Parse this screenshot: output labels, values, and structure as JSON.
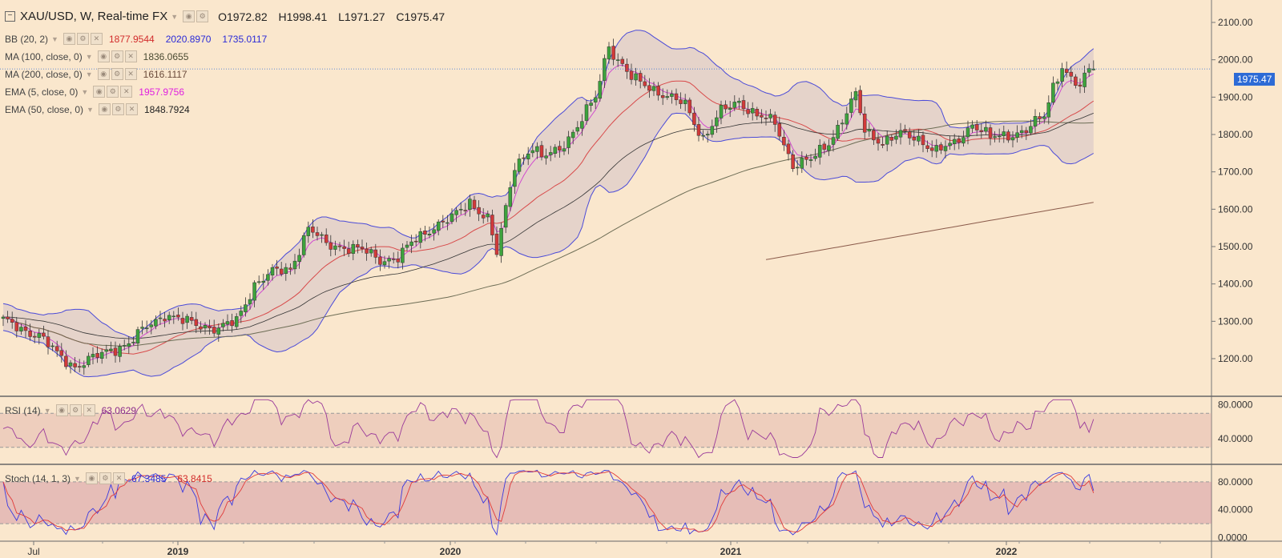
{
  "header": {
    "symbol": "XAU/USD, W, Real-time FX",
    "open": "O1972.82",
    "high": "H1998.41",
    "low": "L1971.27",
    "close": "C1975.47"
  },
  "indicators": [
    {
      "id": "bb",
      "name": "BB (20, 2)",
      "values": [
        {
          "text": "1877.9544",
          "color": "#d22b2b"
        },
        {
          "text": "2020.8970",
          "color": "#2a2ad8"
        },
        {
          "text": "1735.0117",
          "color": "#2a2ad8"
        }
      ]
    },
    {
      "id": "ma100",
      "name": "MA (100, close, 0)",
      "values": [
        {
          "text": "1836.0655",
          "color": "#4a4a32"
        }
      ]
    },
    {
      "id": "ma200",
      "name": "MA (200, close, 0)",
      "values": [
        {
          "text": "1616.1117",
          "color": "#6a4a3a"
        }
      ]
    },
    {
      "id": "ema5",
      "name": "EMA (5, close, 0)",
      "values": [
        {
          "text": "1957.9756",
          "color": "#e020e0"
        }
      ]
    },
    {
      "id": "ema50",
      "name": "EMA (50, close, 0)",
      "values": [
        {
          "text": "1848.7924",
          "color": "#222222"
        }
      ]
    }
  ],
  "rsi_legend": {
    "name": "RSI (14)",
    "value": "63.0629"
  },
  "stoch_legend": {
    "name": "Stoch (14, 1, 3)",
    "k": "67.3485",
    "d": "63.8415"
  },
  "last_price": "1975.47",
  "chart_data": [
    {
      "type": "candlestick",
      "title": "XAU/USD, W, Real-time FX",
      "y_ticks": [
        "2100.00",
        "2000.00",
        "1900.00",
        "1800.00",
        "1700.00",
        "1600.00",
        "1500.00",
        "1400.00",
        "1300.00",
        "1200.00"
      ],
      "ylim": [
        1110,
        2160
      ],
      "x_ticks": [
        "Jul",
        "2019",
        "2020",
        "2021",
        "2022"
      ],
      "anchors": [
        [
          0,
          1300
        ],
        [
          8,
          1262
        ],
        [
          12,
          1212
        ],
        [
          16,
          1180
        ],
        [
          20,
          1200
        ],
        [
          24,
          1225
        ],
        [
          28,
          1240
        ],
        [
          32,
          1285
        ],
        [
          36,
          1320
        ],
        [
          40,
          1300
        ],
        [
          44,
          1290
        ],
        [
          48,
          1280
        ],
        [
          52,
          1300
        ],
        [
          56,
          1400
        ],
        [
          60,
          1430
        ],
        [
          64,
          1440
        ],
        [
          68,
          1550
        ],
        [
          72,
          1505
        ],
        [
          76,
          1500
        ],
        [
          80,
          1490
        ],
        [
          84,
          1465
        ],
        [
          88,
          1470
        ],
        [
          92,
          1520
        ],
        [
          96,
          1555
        ],
        [
          100,
          1575
        ],
        [
          104,
          1620
        ],
        [
          108,
          1575
        ],
        [
          110,
          1480
        ],
        [
          114,
          1720
        ],
        [
          118,
          1765
        ],
        [
          120,
          1735
        ],
        [
          124,
          1765
        ],
        [
          128,
          1820
        ],
        [
          132,
          1900
        ],
        [
          135,
          2045
        ],
        [
          136,
          2015
        ],
        [
          140,
          1950
        ],
        [
          144,
          1930
        ],
        [
          148,
          1900
        ],
        [
          152,
          1880
        ],
        [
          156,
          1790
        ],
        [
          160,
          1860
        ],
        [
          164,
          1890
        ],
        [
          168,
          1850
        ],
        [
          172,
          1830
        ],
        [
          176,
          1720
        ],
        [
          180,
          1730
        ],
        [
          184,
          1780
        ],
        [
          188,
          1860
        ],
        [
          190,
          1905
        ],
        [
          192,
          1810
        ],
        [
          196,
          1780
        ],
        [
          200,
          1800
        ],
        [
          204,
          1790
        ],
        [
          208,
          1755
        ],
        [
          212,
          1775
        ],
        [
          216,
          1830
        ],
        [
          220,
          1790
        ],
        [
          224,
          1800
        ],
        [
          228,
          1810
        ],
        [
          232,
          1850
        ],
        [
          234,
          1930
        ],
        [
          236,
          1985
        ],
        [
          238,
          1945
        ],
        [
          240,
          1925
        ],
        [
          242,
          1975
        ]
      ],
      "overlays": [
        "BB upper",
        "BB middle",
        "BB lower",
        "MA 100",
        "MA 200",
        "EMA 5",
        "EMA 50"
      ]
    },
    {
      "type": "line",
      "title": "RSI (14)",
      "y_ticks": [
        "80.0000",
        "40.0000"
      ],
      "bands": [
        30,
        70
      ],
      "last": 63.0629
    },
    {
      "type": "line",
      "title": "Stoch (14, 1, 3)",
      "y_ticks": [
        "80.0000",
        "40.0000",
        "0.0000"
      ],
      "bands": [
        20,
        80
      ],
      "series": [
        {
          "name": "%K",
          "last": 67.3485
        },
        {
          "name": "%D",
          "last": 63.8415
        }
      ]
    }
  ]
}
